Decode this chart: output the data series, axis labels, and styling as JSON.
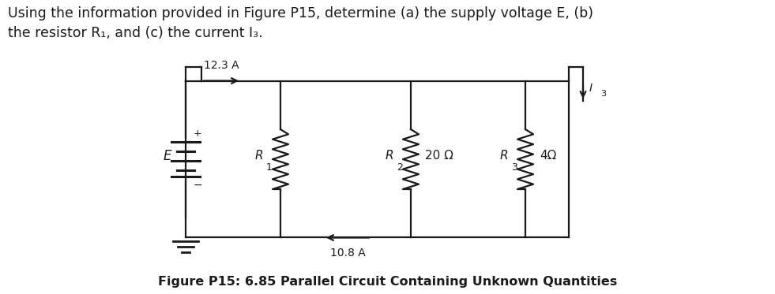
{
  "title_line1": "Using the information provided in Figure P15, determine (a) the supply voltage E, (b)",
  "title_line2": "the resistor R₁, and (c) the current I₃.",
  "figure_caption": "Figure P15: 6.85 Parallel Circuit Containing Unknown Quantities",
  "current_top": "12.3 A",
  "current_bottom": "10.8 A",
  "current_right": "I",
  "current_right_sub": "3",
  "label_E": "E",
  "label_R1": "R",
  "label_R1_sub": "1",
  "label_R2": "R",
  "label_R2_sub": "2",
  "label_R2_val": "20 Ω",
  "label_R3": "R",
  "label_R3_sub": "3",
  "label_R3_val": "4Ω",
  "bg_color": "#ffffff",
  "line_color": "#1a1a1a",
  "font_size_title": 12.5,
  "font_size_caption": 11.5,
  "font_size_labels": 11
}
